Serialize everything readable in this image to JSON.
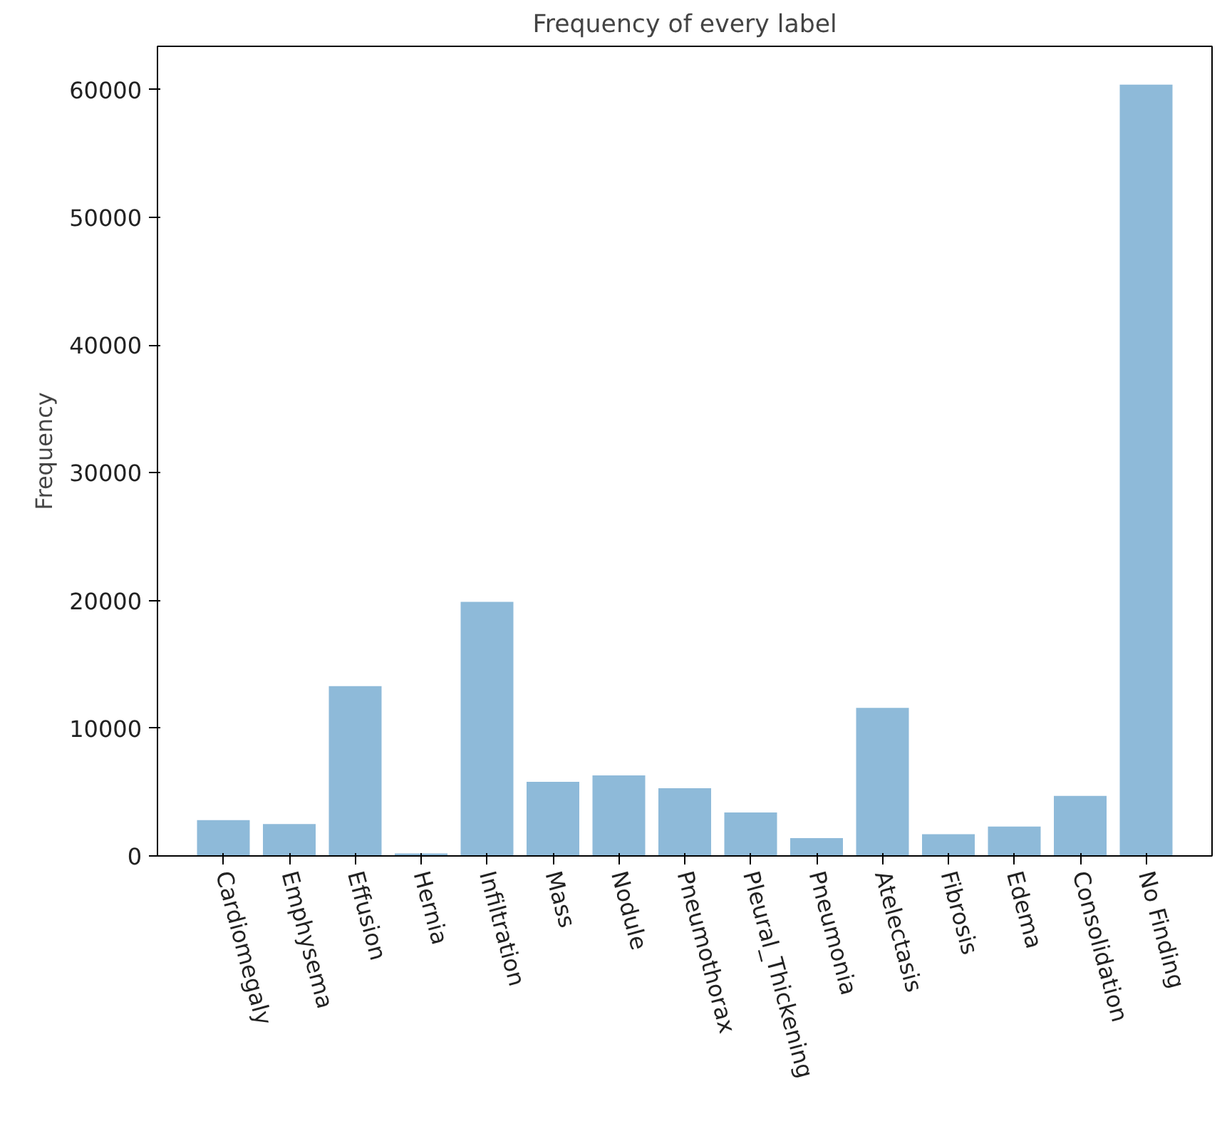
{
  "chart_data": {
    "type": "bar",
    "title": "Frequency of every label",
    "ylabel": "Frequency",
    "categories": [
      "Cardiomegaly",
      "Emphysema",
      "Effusion",
      "Hernia",
      "Infiltration",
      "Mass",
      "Nodule",
      "Pneumothorax",
      "Pleural_Thickening",
      "Pneumonia",
      "Atelectasis",
      "Fibrosis",
      "Edema",
      "Consolidation",
      "No Finding"
    ],
    "values": [
      2800,
      2500,
      13300,
      200,
      19900,
      5800,
      6300,
      5300,
      3400,
      1400,
      11600,
      1700,
      2300,
      4700,
      60400
    ],
    "color": "#8ebad9",
    "ylim": [
      0,
      63400
    ],
    "yticks": [
      0,
      10000,
      20000,
      30000,
      40000,
      50000,
      60000
    ],
    "grid": false
  }
}
